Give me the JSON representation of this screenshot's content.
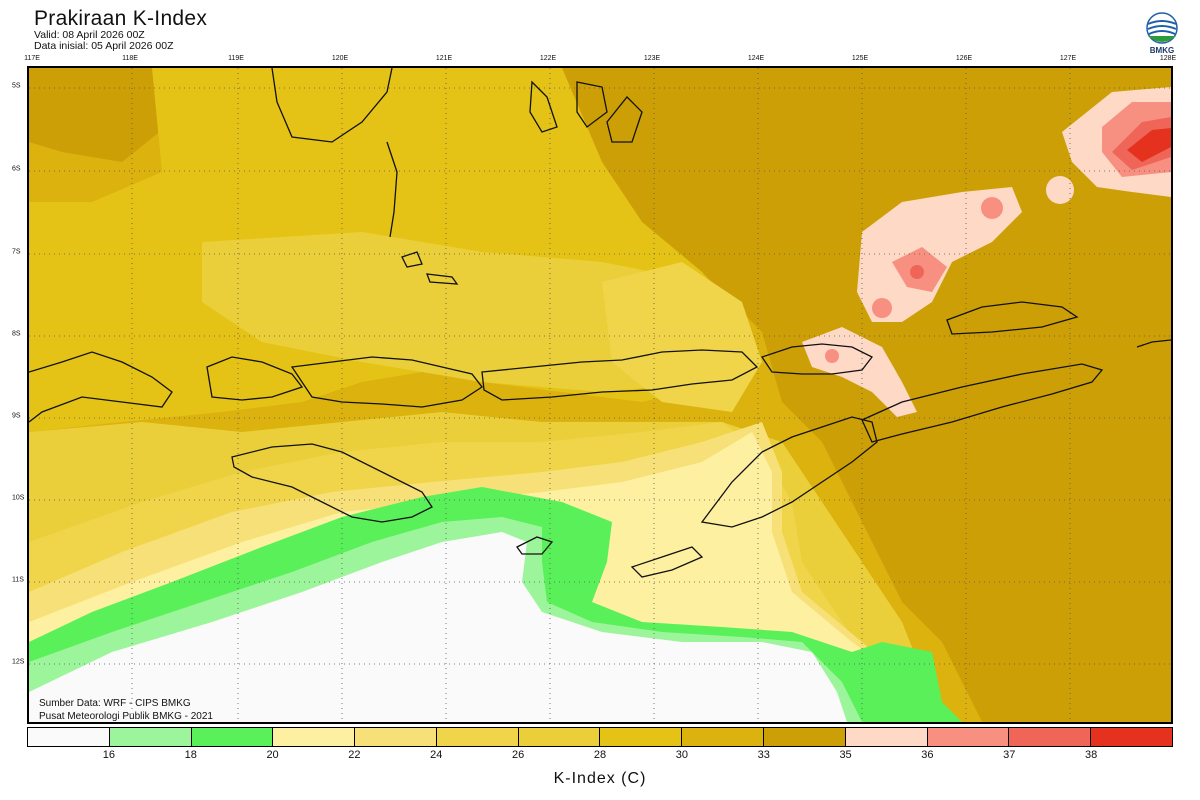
{
  "header": {
    "title": "Prakiraan K-Index",
    "valid": "Valid: 08 April 2026 00Z",
    "init": "Data inisial: 05 April 2026 00Z"
  },
  "logo": {
    "label": "BMKG",
    "icon": "bmkg-logo-icon"
  },
  "map": {
    "lon_ticks": [
      "117E",
      "118E",
      "119E",
      "120E",
      "121E",
      "122E",
      "123E",
      "124E",
      "125E",
      "126E",
      "127E",
      "128E"
    ],
    "lat_ticks": [
      "5S",
      "6S",
      "7S",
      "8S",
      "9S",
      "10S",
      "11S",
      "12S"
    ],
    "lon_range": [
      117,
      128
    ],
    "lat_range": [
      -4.8,
      -12.7
    ],
    "grid": "dotted"
  },
  "credits": {
    "source": "Sumber Data: WRF - CIPS BMKG",
    "center": "Pusat Meteorologi Publik BMKG - 2021"
  },
  "colorbar": {
    "title": "K-Index (C)",
    "labels": [
      "16",
      "18",
      "20",
      "22",
      "24",
      "26",
      "28",
      "30",
      "33",
      "35",
      "36",
      "37",
      "38"
    ],
    "colors": [
      "#fafafa",
      "#9cf59a",
      "#5af05a",
      "#fdf0a0",
      "#f8e078",
      "#f0d54a",
      "#ebcf3a",
      "#e4c316",
      "#dcb20e",
      "#cd9f06",
      "#fdd9c6",
      "#f79080",
      "#ef6658",
      "#e5321e"
    ]
  }
}
